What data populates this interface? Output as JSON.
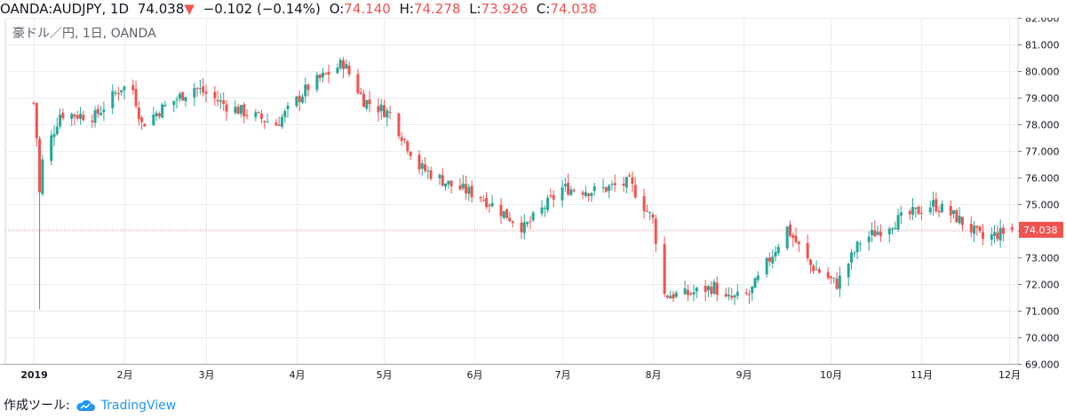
{
  "header": {
    "symbol": "OANDA:AUDJPY, 1D",
    "last": "74.038",
    "change_arrow": "▼",
    "change": "−0.102 (−0.14%)",
    "open_label": "O:",
    "open": "74.140",
    "high_label": "H:",
    "high": "74.278",
    "low_label": "L:",
    "low": "73.926",
    "close_label": "C:",
    "close": "74.038"
  },
  "subtitle": "豪ドル／円, 1日, OANDA",
  "footer": {
    "prefix": "作成ツール:",
    "brand": "TradingView",
    "brand_icon": "tradingview-cloud-icon"
  },
  "colors": {
    "up": "#26a69a",
    "down": "#ef5350",
    "grid": "#e9ecf2",
    "price_tag": "#ef5350"
  },
  "chart_data": {
    "type": "candlestick",
    "title": "豪ドル／円, 1日, OANDA",
    "symbol": "OANDA:AUDJPY",
    "interval": "1D",
    "last_price_label": "74.038",
    "ylim": [
      69.0,
      82.0
    ],
    "y_ticks": [
      "69.000",
      "70.000",
      "71.000",
      "72.000",
      "73.000",
      "74.000",
      "75.000",
      "76.000",
      "77.000",
      "78.000",
      "79.000",
      "80.000",
      "81.000",
      "82.000"
    ],
    "x_ticks": [
      "2019",
      "2月",
      "3月",
      "4月",
      "5月",
      "6月",
      "7月",
      "8月",
      "9月",
      "10月",
      "11月",
      "12月"
    ],
    "grid": true,
    "series_close_points": [
      {
        "date": "2019-01-01",
        "close": 78.8
      },
      {
        "date": "2019-01-02",
        "close": 77.5
      },
      {
        "date": "2019-01-03",
        "close": 75.4
      },
      {
        "date": "2019-01-04",
        "close": 76.6
      },
      {
        "date": "2019-01-10",
        "close": 78.4
      },
      {
        "date": "2019-01-22",
        "close": 78.3
      },
      {
        "date": "2019-01-31",
        "close": 79.4
      },
      {
        "date": "2019-02-04",
        "close": 79.3
      },
      {
        "date": "2019-02-07",
        "close": 78.0
      },
      {
        "date": "2019-02-14",
        "close": 78.6
      },
      {
        "date": "2019-02-25",
        "close": 79.4
      },
      {
        "date": "2019-03-08",
        "close": 78.7
      },
      {
        "date": "2019-03-25",
        "close": 78.0
      },
      {
        "date": "2019-04-05",
        "close": 79.4
      },
      {
        "date": "2019-04-17",
        "close": 80.3
      },
      {
        "date": "2019-04-24",
        "close": 78.9
      },
      {
        "date": "2019-05-03",
        "close": 78.4
      },
      {
        "date": "2019-05-13",
        "close": 76.4
      },
      {
        "date": "2019-05-24",
        "close": 75.7
      },
      {
        "date": "2019-06-03",
        "close": 75.3
      },
      {
        "date": "2019-06-18",
        "close": 74.1
      },
      {
        "date": "2019-07-01",
        "close": 75.6
      },
      {
        "date": "2019-07-12",
        "close": 75.5
      },
      {
        "date": "2019-07-24",
        "close": 75.8
      },
      {
        "date": "2019-08-01",
        "close": 74.4
      },
      {
        "date": "2019-08-05",
        "close": 71.6
      },
      {
        "date": "2019-08-12",
        "close": 71.6
      },
      {
        "date": "2019-08-22",
        "close": 71.9
      },
      {
        "date": "2019-08-26",
        "close": 71.4
      },
      {
        "date": "2019-09-03",
        "close": 71.6
      },
      {
        "date": "2019-09-16",
        "close": 74.1
      },
      {
        "date": "2019-09-24",
        "close": 72.7
      },
      {
        "date": "2019-10-03",
        "close": 72.0
      },
      {
        "date": "2019-10-11",
        "close": 73.6
      },
      {
        "date": "2019-10-22",
        "close": 74.3
      },
      {
        "date": "2019-11-05",
        "close": 75.0
      },
      {
        "date": "2019-11-13",
        "close": 74.5
      },
      {
        "date": "2019-11-22",
        "close": 73.7
      },
      {
        "date": "2019-12-02",
        "close": 74.038
      }
    ]
  }
}
